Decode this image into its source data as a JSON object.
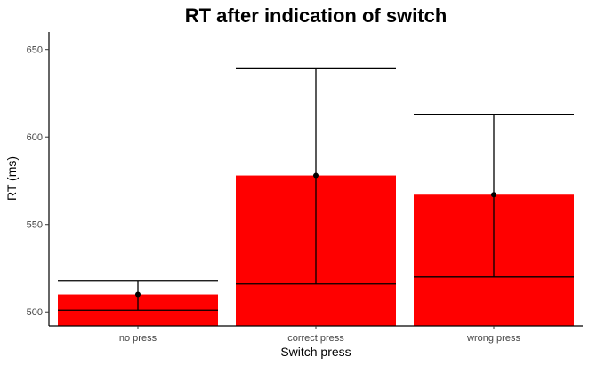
{
  "chart_data": {
    "type": "bar",
    "title": "RT after indication of switch",
    "xlabel": "Switch press",
    "ylabel": "RT (ms)",
    "categories": [
      "no press",
      "correct press",
      "wrong press"
    ],
    "values": [
      510,
      578,
      567
    ],
    "error_bars": [
      {
        "low": 501,
        "high": 518
      },
      {
        "low": 516,
        "high": 639
      },
      {
        "low": 520,
        "high": 613
      }
    ],
    "ylim": [
      492,
      660
    ],
    "yticks": [
      500,
      550,
      600,
      650
    ],
    "bar_color": "#ff0000",
    "grid": false
  }
}
